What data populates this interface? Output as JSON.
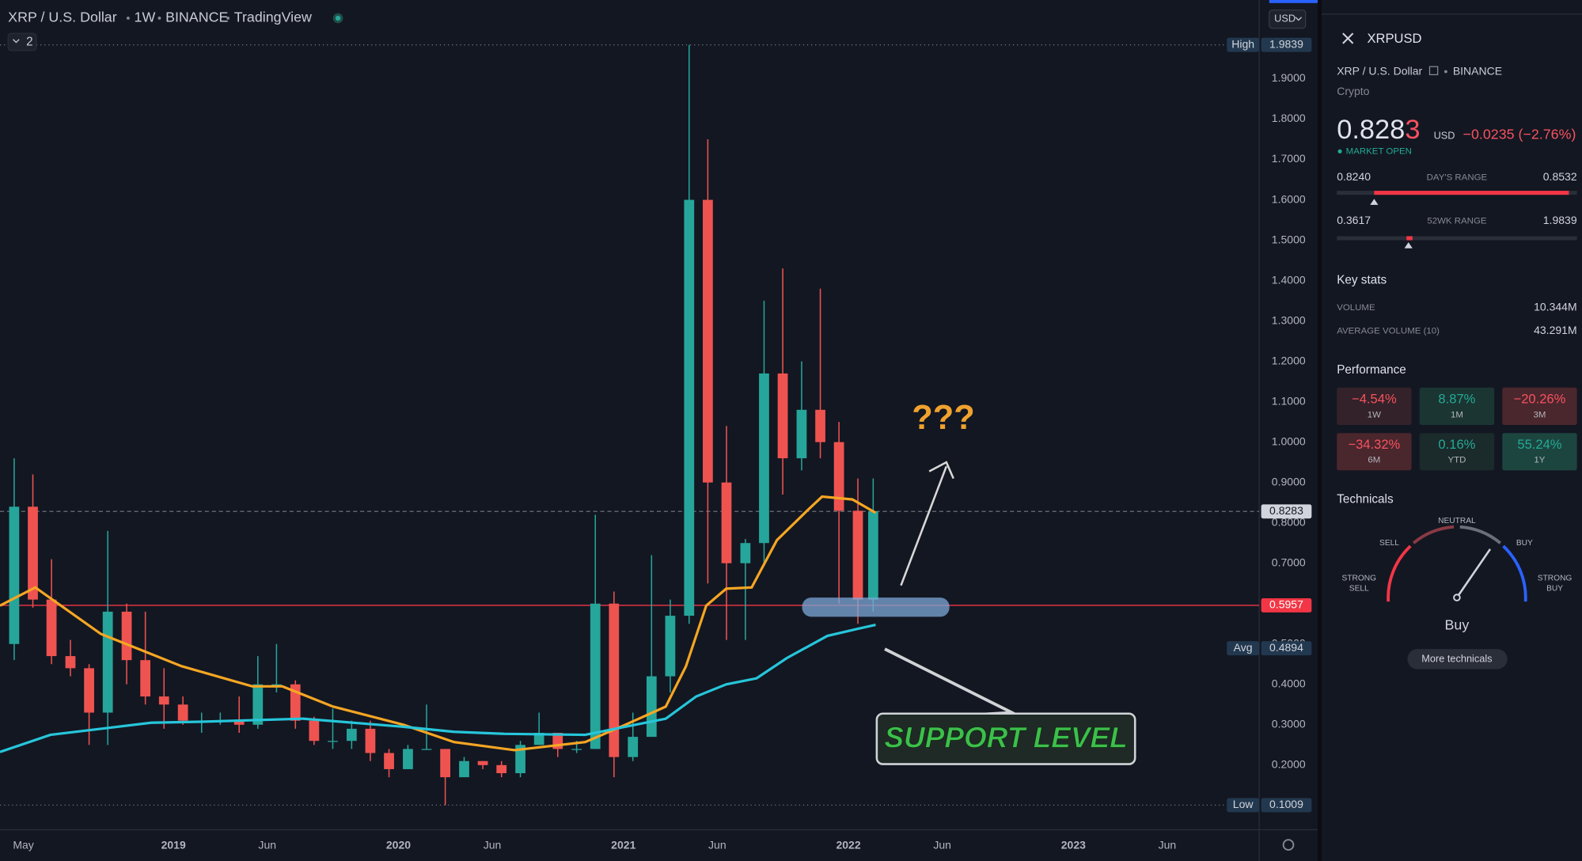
{
  "toolbar": {
    "symbol": "XRP / U.S. Dollar",
    "interval": "1W",
    "exchange": "BINANCE",
    "brand": "TradingView",
    "indicators": "2",
    "currency": "USD"
  },
  "chart_data": {
    "type": "candlestick",
    "x": [
      2018.292,
      2018.375,
      2018.458,
      2018.542,
      2018.625,
      2018.708,
      2018.792,
      2018.875,
      2018.958,
      2019.042,
      2019.125,
      2019.208,
      2019.292,
      2019.375,
      2019.458,
      2019.542,
      2019.625,
      2019.708,
      2019.792,
      2019.875,
      2019.958,
      2020.042,
      2020.125,
      2020.208,
      2020.292,
      2020.375,
      2020.458,
      2020.542,
      2020.625,
      2020.708,
      2020.792,
      2020.875,
      2020.958,
      2021.042,
      2021.125,
      2021.208,
      2021.292,
      2021.375,
      2021.458,
      2021.542,
      2021.625,
      2021.708,
      2021.792,
      2021.875,
      2021.958,
      2022.042,
      2022.11
    ],
    "open": [
      0.5,
      0.84,
      0.61,
      0.47,
      0.44,
      0.33,
      0.58,
      0.46,
      0.37,
      0.35,
      0.31,
      0.31,
      0.31,
      0.3,
      0.4,
      0.4,
      0.31,
      0.26,
      0.26,
      0.29,
      0.23,
      0.19,
      0.24,
      0.24,
      0.17,
      0.21,
      0.2,
      0.18,
      0.25,
      0.28,
      0.24,
      0.24,
      0.6,
      0.22,
      0.27,
      0.42,
      0.57,
      1.6,
      0.9,
      0.7,
      0.75,
      1.17,
      0.96,
      1.08,
      1.0,
      0.83,
      0.61
    ],
    "high": [
      0.96,
      0.92,
      0.71,
      0.51,
      0.45,
      0.78,
      0.6,
      0.58,
      0.44,
      0.37,
      0.33,
      0.33,
      0.37,
      0.47,
      0.5,
      0.41,
      0.32,
      0.34,
      0.31,
      0.31,
      0.24,
      0.25,
      0.35,
      0.24,
      0.22,
      0.21,
      0.21,
      0.26,
      0.33,
      0.28,
      0.26,
      0.82,
      0.63,
      0.33,
      0.72,
      0.61,
      1.9839,
      1.75,
      1.04,
      0.76,
      1.35,
      1.43,
      1.2,
      1.38,
      1.05,
      0.91,
      0.91
    ],
    "low": [
      0.46,
      0.59,
      0.45,
      0.42,
      0.25,
      0.25,
      0.4,
      0.35,
      0.29,
      0.3,
      0.28,
      0.3,
      0.28,
      0.29,
      0.38,
      0.29,
      0.25,
      0.24,
      0.24,
      0.21,
      0.17,
      0.19,
      0.24,
      0.1009,
      0.17,
      0.19,
      0.17,
      0.17,
      0.25,
      0.22,
      0.23,
      0.24,
      0.17,
      0.21,
      0.27,
      0.38,
      0.55,
      0.65,
      0.51,
      0.51,
      0.7,
      0.87,
      0.93,
      0.96,
      0.6,
      0.55,
      0.58
    ],
    "close": [
      0.84,
      0.61,
      0.47,
      0.44,
      0.33,
      0.58,
      0.46,
      0.37,
      0.35,
      0.31,
      0.31,
      0.31,
      0.3,
      0.4,
      0.4,
      0.31,
      0.26,
      0.26,
      0.29,
      0.23,
      0.19,
      0.24,
      0.24,
      0.17,
      0.21,
      0.2,
      0.18,
      0.25,
      0.28,
      0.24,
      0.24,
      0.6,
      0.22,
      0.27,
      0.42,
      0.57,
      1.6,
      0.9,
      0.7,
      0.75,
      1.17,
      0.96,
      1.08,
      1.0,
      0.83,
      0.61,
      0.8283
    ],
    "up_color": "#26a69a",
    "down_color": "#ef5350",
    "lines": [
      {
        "color": "#f5a623",
        "x": [
          2018.229,
          2018.386,
          2018.677,
          2019.036,
          2019.35,
          2019.484,
          2019.709,
          2020.022,
          2020.247,
          2020.516,
          2020.83,
          2021.009,
          2021.188,
          2021.278,
          2021.368,
          2021.457,
          2021.57,
          2021.682,
          2021.816,
          2021.883,
          2022.018,
          2022.121
        ],
        "values": [
          0.595,
          0.64,
          0.525,
          0.445,
          0.395,
          0.395,
          0.345,
          0.3,
          0.257,
          0.237,
          0.257,
          0.3,
          0.345,
          0.445,
          0.595,
          0.637,
          0.64,
          0.757,
          0.83,
          0.865,
          0.858,
          0.825
        ]
      },
      {
        "color": "#26c6da",
        "x": [
          2018.229,
          2018.453,
          2018.677,
          2018.901,
          2019.126,
          2019.574,
          2020.022,
          2020.247,
          2020.471,
          2020.83,
          2021.009,
          2021.188,
          2021.323,
          2021.457,
          2021.592,
          2021.726,
          2021.906,
          2022.04,
          2022.121
        ],
        "values": [
          0.2325,
          0.275,
          0.29,
          0.305,
          0.3075,
          0.315,
          0.295,
          0.2825,
          0.2775,
          0.275,
          0.295,
          0.315,
          0.37,
          0.4,
          0.415,
          0.465,
          0.52,
          0.5375,
          0.5475
        ]
      }
    ],
    "xlim": [
      2018.229,
      2023.812
    ],
    "xticks": [
      {
        "value": 2018.333,
        "label": "May"
      },
      {
        "value": 2019,
        "label": "2019"
      },
      {
        "value": 2019.417,
        "label": "Jun"
      },
      {
        "value": 2020,
        "label": "2020"
      },
      {
        "value": 2020.417,
        "label": "Jun"
      },
      {
        "value": 2021,
        "label": "2021"
      },
      {
        "value": 2021.417,
        "label": "Jun"
      },
      {
        "value": 2022,
        "label": "2022"
      },
      {
        "value": 2022.417,
        "label": "Jun"
      },
      {
        "value": 2023,
        "label": "2023"
      },
      {
        "value": 2023.417,
        "label": "Jun"
      }
    ],
    "ylim": [
      0.1,
      2.0
    ],
    "yticks": [
      {
        "value": 0.2,
        "label": "0.2000"
      },
      {
        "value": 0.3,
        "label": "0.3000"
      },
      {
        "value": 0.4,
        "label": "0.4000"
      },
      {
        "value": 0.5,
        "label": "0.5000"
      },
      {
        "value": 0.6,
        "label": "0.6000"
      },
      {
        "value": 0.7,
        "label": "0.7000"
      },
      {
        "value": 0.8,
        "label": "0.8000"
      },
      {
        "value": 0.9,
        "label": "0.9000"
      },
      {
        "value": 1.0,
        "label": "1.0000"
      },
      {
        "value": 1.1,
        "label": "1.1000"
      },
      {
        "value": 1.2,
        "label": "1.2000"
      },
      {
        "value": 1.3,
        "label": "1.3000"
      },
      {
        "value": 1.4,
        "label": "1.4000"
      },
      {
        "value": 1.5,
        "label": "1.5000"
      },
      {
        "value": 1.6,
        "label": "1.6000"
      },
      {
        "value": 1.7,
        "label": "1.7000"
      },
      {
        "value": 1.8,
        "label": "1.8000"
      },
      {
        "value": 1.9,
        "label": "1.9000"
      }
    ],
    "grid": false,
    "price_labels": [
      {
        "label": "High",
        "value": 1.9839,
        "color": "#22384f",
        "text_color": "#d1d4dc",
        "line": "dotted"
      },
      {
        "label": "Low",
        "value": 0.1009,
        "color": "#22384f",
        "text_color": "#d1d4dc",
        "line": "dotted"
      },
      {
        "label": "Avg",
        "value": 0.4894,
        "color": "#22384f",
        "text_color": "#d1d4dc",
        "line": "none"
      },
      {
        "value": 0.8283,
        "color": "#d1d4dc",
        "text_color": "#131722",
        "line": "dashed"
      },
      {
        "value": 0.5957,
        "color": "#f23645",
        "text_color": "#ffffff",
        "line": "solid"
      }
    ],
    "annotations": {
      "question": "???",
      "support": "SUPPORT LEVEL"
    }
  },
  "panel": {
    "ticker": "XRPUSD",
    "name": "XRP / U.S. Dollar",
    "exchange": "BINANCE",
    "category": "Crypto",
    "price_main": "0.828",
    "price_last": "3",
    "currency": "USD",
    "change": "−0.0235 (−2.76%)",
    "status": "MARKET OPEN",
    "day_range": {
      "low": "0.8240",
      "label": "DAY'S RANGE",
      "high": "0.8532"
    },
    "week52_range": {
      "low": "0.3617",
      "label": "52WK RANGE",
      "high": "1.9839"
    },
    "key_stats": {
      "title": "Key stats",
      "rows": [
        [
          "VOLUME",
          "10.344M"
        ],
        [
          "AVERAGE VOLUME (10)",
          "43.291M"
        ]
      ]
    },
    "performance": {
      "title": "Performance",
      "cells": [
        {
          "value": "−4.54%",
          "period": "1W",
          "color": "#f7525f",
          "bg": "#332229"
        },
        {
          "value": "8.87%",
          "period": "1M",
          "color": "#22ab94",
          "bg": "#1b3533"
        },
        {
          "value": "−20.26%",
          "period": "3M",
          "color": "#f7525f",
          "bg": "#4a262d"
        },
        {
          "value": "−34.32%",
          "period": "6M",
          "color": "#f7525f",
          "bg": "#4a262d"
        },
        {
          "value": "0.16%",
          "period": "YTD",
          "color": "#22ab94",
          "bg": "#1b2a2b"
        },
        {
          "value": "55.24%",
          "period": "1Y",
          "color": "#22ab94",
          "bg": "#1d4540"
        }
      ]
    },
    "technicals": {
      "title": "Technicals",
      "strong_sell": [
        "STRONG",
        "SELL"
      ],
      "sell": "SELL",
      "neutral": "NEUTRAL",
      "buy": "BUY",
      "strong_buy": [
        "STRONG",
        "BUY"
      ],
      "rating": "Buy",
      "button": "More technicals"
    }
  }
}
